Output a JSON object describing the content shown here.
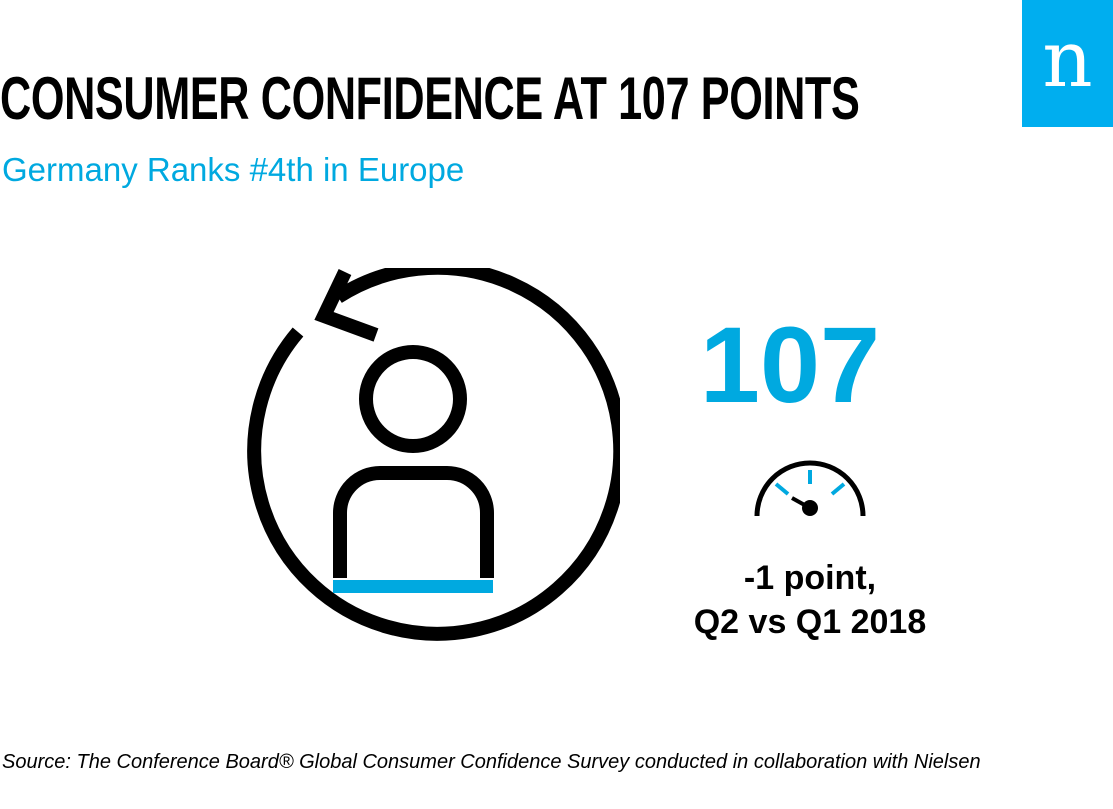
{
  "header": {
    "title": "CONSUMER CONFIDENCE AT 107 POINTS",
    "subtitle": "Germany Ranks #4th in Europe"
  },
  "logo": {
    "letter": "n",
    "brand": "Nielsen",
    "color": "#00aeef"
  },
  "illustration": {
    "icon": "person-refresh-icon",
    "accent_color": "#00a9e0"
  },
  "stat": {
    "value": "107",
    "gauge_icon": "gauge-icon",
    "change_line1": "-1 point,",
    "change_line2": "Q2 vs Q1 2018",
    "color": "#00a9e0"
  },
  "footer": {
    "source": "Source: The Conference Board® Global Consumer Confidence Survey conducted in collaboration with Nielsen"
  }
}
